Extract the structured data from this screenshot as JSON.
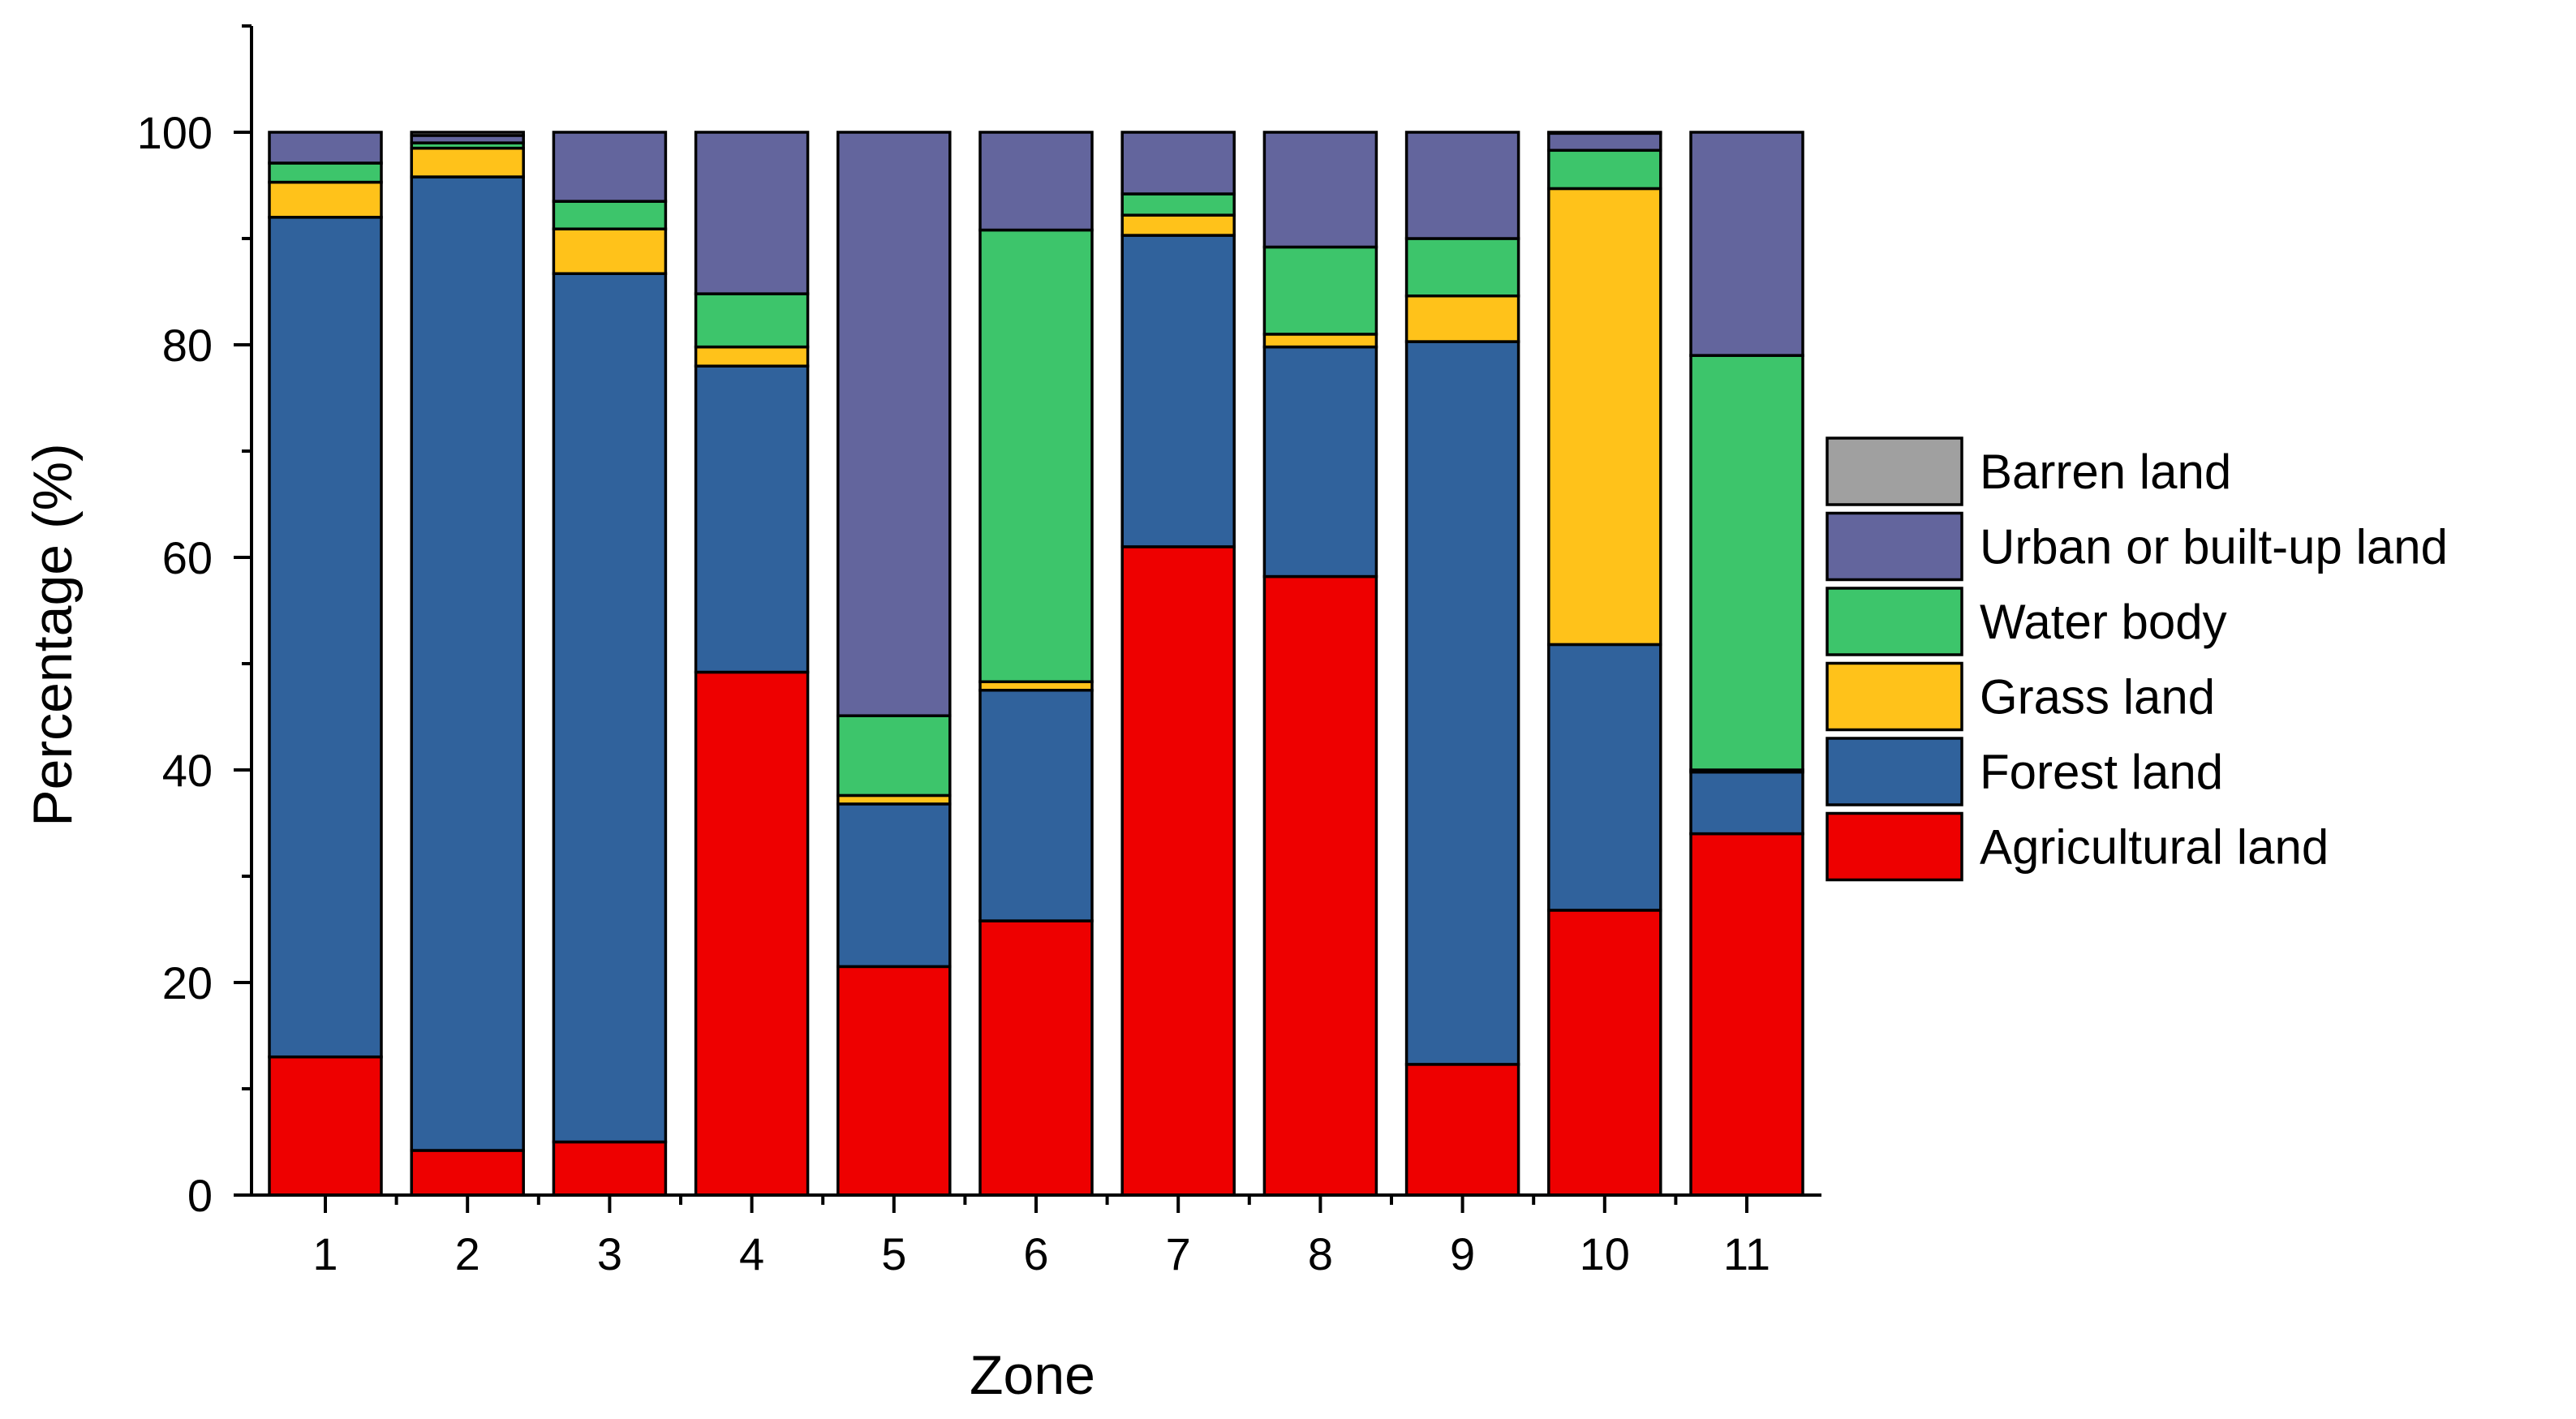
{
  "chart_data": {
    "type": "bar",
    "stacked": true,
    "title": "",
    "xlabel": "Zone",
    "ylabel": "Percentage (%)",
    "ylim": [
      0,
      110
    ],
    "yticks": [
      0,
      20,
      40,
      60,
      80,
      100
    ],
    "categories": [
      "1",
      "2",
      "3",
      "4",
      "5",
      "6",
      "7",
      "8",
      "9",
      "10",
      "11"
    ],
    "legend_position": "right",
    "series": [
      {
        "name": "Agricultural land",
        "color": "#EE0000",
        "values": [
          13.0,
          4.2,
          5.0,
          49.2,
          21.5,
          25.8,
          61.0,
          58.2,
          12.3,
          26.8,
          34.0
        ]
      },
      {
        "name": "Forest land",
        "color": "#30629C",
        "values": [
          79.0,
          91.6,
          81.7,
          28.8,
          15.3,
          21.7,
          29.3,
          21.6,
          68.0,
          25.0,
          5.8
        ]
      },
      {
        "name": "Grass land",
        "color": "#FFC21A",
        "values": [
          3.3,
          2.7,
          4.2,
          1.8,
          0.8,
          0.8,
          1.9,
          1.2,
          4.3,
          42.9,
          0.2
        ]
      },
      {
        "name": "Water body",
        "color": "#3DC56B",
        "values": [
          1.8,
          0.5,
          2.6,
          5.0,
          7.5,
          42.5,
          2.0,
          8.2,
          5.4,
          3.6,
          39.0
        ]
      },
      {
        "name": "Urban or built-up land",
        "color": "#63659D",
        "values": [
          2.9,
          0.7,
          6.5,
          15.2,
          54.9,
          9.2,
          5.8,
          10.8,
          10.0,
          1.6,
          21.0
        ]
      },
      {
        "name": "Barren land",
        "color": "#A0A0A0",
        "values": [
          0.0,
          0.3,
          0.0,
          0.0,
          0.0,
          0.0,
          0.0,
          0.0,
          0.0,
          0.1,
          0.0
        ]
      }
    ],
    "grid": false
  }
}
